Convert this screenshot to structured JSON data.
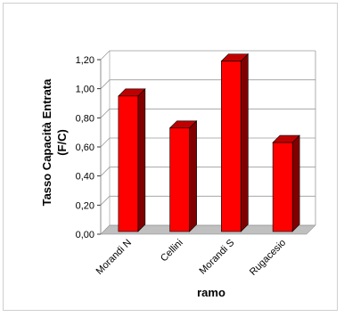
{
  "chart_data": {
    "type": "bar",
    "categories": [
      "Morandi N",
      "Cellini",
      "Morandi S",
      "Rugacesio"
    ],
    "values": [
      0.95,
      0.73,
      1.19,
      0.63
    ],
    "ylim": [
      0,
      1.2
    ],
    "yticks": [
      "0,00",
      "0,20",
      "0,40",
      "0,60",
      "0,80",
      "1,00",
      "1,20"
    ],
    "ylabel_line1": "Tasso Capacità Entrata",
    "ylabel_line2": "(F/C)",
    "xlabel": "ramo",
    "grid": true,
    "bar_colors": {
      "front": "#ff0000",
      "side": "#800000",
      "top": "#c00000",
      "edge": "#000000"
    }
  }
}
